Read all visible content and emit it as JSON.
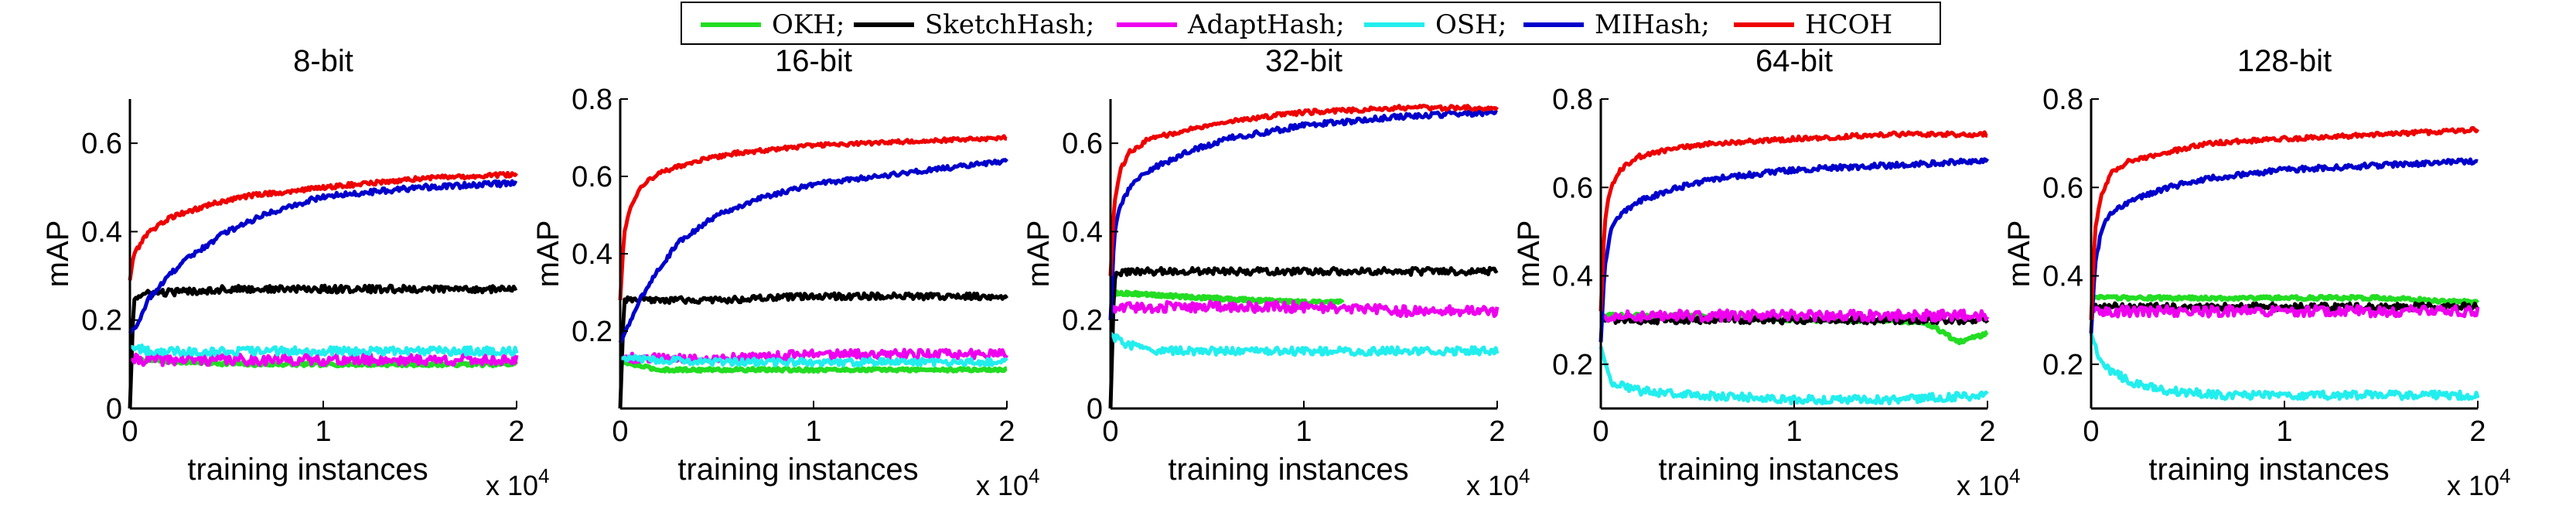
{
  "legend": {
    "items": [
      {
        "label": "OKH;",
        "color": "#22dd22"
      },
      {
        "label": "SketchHash;",
        "color": "#000000"
      },
      {
        "label": "AdaptHash;",
        "color": "#ee00ee"
      },
      {
        "label": "OSH;",
        "color": "#22eeee"
      },
      {
        "label": "MIHash;",
        "color": "#0000cc"
      },
      {
        "label": "HCOH",
        "color": "#ee0000"
      }
    ]
  },
  "chart_data": [
    {
      "type": "line",
      "title": "8-bit",
      "xlabel": "training instances",
      "ylabel": "mAP",
      "x_multiplier": "x 10^4",
      "xlim": [
        0,
        2
      ],
      "ylim": [
        0,
        0.7
      ],
      "xticks": [
        0,
        1,
        2
      ],
      "yticks": [
        0,
        0.2,
        0.4,
        0.6
      ],
      "series": [
        {
          "name": "OKH",
          "x": [
            0,
            0.6,
            2.0
          ],
          "values": [
            0.11,
            0.1,
            0.1
          ]
        },
        {
          "name": "SketchHash",
          "x": [
            0,
            0.02,
            0.1,
            0.5,
            1.0,
            1.5,
            2.0
          ],
          "values": [
            0.0,
            0.25,
            0.26,
            0.27,
            0.27,
            0.27,
            0.27
          ]
        },
        {
          "name": "AdaptHash",
          "x": [
            0,
            0.5,
            1.0,
            2.0
          ],
          "values": [
            0.11,
            0.11,
            0.11,
            0.11
          ]
        },
        {
          "name": "OSH",
          "x": [
            0,
            0.1,
            0.5,
            1.0,
            2.0
          ],
          "values": [
            0.14,
            0.13,
            0.13,
            0.13,
            0.13
          ]
        },
        {
          "name": "MIHash",
          "x": [
            0,
            0.05,
            0.1,
            0.2,
            0.3,
            0.5,
            0.7,
            1.0,
            1.5,
            2.0
          ],
          "values": [
            0.17,
            0.2,
            0.25,
            0.3,
            0.34,
            0.4,
            0.44,
            0.48,
            0.5,
            0.51
          ]
        },
        {
          "name": "HCOH",
          "x": [
            0,
            0.02,
            0.1,
            0.2,
            0.4,
            0.6,
            1.0,
            1.5,
            2.0
          ],
          "values": [
            0.29,
            0.35,
            0.4,
            0.43,
            0.46,
            0.48,
            0.5,
            0.52,
            0.53
          ]
        }
      ]
    },
    {
      "type": "line",
      "title": "16-bit",
      "xlabel": "training instances",
      "ylabel": "mAP",
      "x_multiplier": "x 10^4",
      "xlim": [
        0,
        2
      ],
      "ylim": [
        0,
        0.8
      ],
      "xticks": [
        0,
        1,
        2
      ],
      "yticks": [
        0.2,
        0.4,
        0.6,
        0.8
      ],
      "series": [
        {
          "name": "OKH",
          "x": [
            0,
            0.2,
            0.5,
            1.0,
            2.0
          ],
          "values": [
            0.12,
            0.1,
            0.1,
            0.1,
            0.1
          ]
        },
        {
          "name": "SketchHash",
          "x": [
            0,
            0.02,
            0.1,
            0.5,
            1.0,
            1.5,
            2.0
          ],
          "values": [
            0.0,
            0.28,
            0.28,
            0.28,
            0.29,
            0.29,
            0.29
          ]
        },
        {
          "name": "AdaptHash",
          "x": [
            0,
            0.5,
            1.0,
            1.5,
            2.0
          ],
          "values": [
            0.13,
            0.13,
            0.14,
            0.14,
            0.14
          ]
        },
        {
          "name": "OSH",
          "x": [
            0,
            0.5,
            1.0,
            2.0
          ],
          "values": [
            0.13,
            0.12,
            0.12,
            0.12
          ]
        },
        {
          "name": "MIHash",
          "x": [
            0,
            0.05,
            0.1,
            0.2,
            0.3,
            0.5,
            0.7,
            1.0,
            1.5,
            2.0
          ],
          "values": [
            0.17,
            0.22,
            0.28,
            0.36,
            0.43,
            0.5,
            0.54,
            0.58,
            0.61,
            0.64
          ]
        },
        {
          "name": "HCOH",
          "x": [
            0,
            0.02,
            0.05,
            0.1,
            0.2,
            0.4,
            0.6,
            1.0,
            1.5,
            2.0
          ],
          "values": [
            0.28,
            0.45,
            0.52,
            0.57,
            0.61,
            0.64,
            0.66,
            0.68,
            0.69,
            0.7
          ]
        }
      ]
    },
    {
      "type": "line",
      "title": "32-bit",
      "xlabel": "training instances",
      "ylabel": "mAP",
      "x_multiplier": "x 10^4",
      "xlim": [
        0,
        2
      ],
      "ylim": [
        0,
        0.7
      ],
      "xticks": [
        0,
        1,
        2
      ],
      "yticks": [
        0,
        0.2,
        0.4,
        0.6
      ],
      "series": [
        {
          "name": "OKH",
          "x": [
            0,
            0.1,
            0.5,
            1.0,
            1.2
          ],
          "values": [
            0.26,
            0.26,
            0.25,
            0.24,
            0.24
          ]
        },
        {
          "name": "SketchHash",
          "x": [
            0,
            0.02,
            0.1,
            0.5,
            1.0,
            1.5,
            2.0
          ],
          "values": [
            0.0,
            0.3,
            0.31,
            0.31,
            0.31,
            0.31,
            0.31
          ]
        },
        {
          "name": "AdaptHash",
          "x": [
            0,
            0.5,
            1.0,
            1.5,
            2.0
          ],
          "values": [
            0.23,
            0.23,
            0.23,
            0.22,
            0.22
          ]
        },
        {
          "name": "OSH",
          "x": [
            0,
            0.05,
            0.2,
            0.5,
            1.0,
            1.5,
            2.0
          ],
          "values": [
            0.17,
            0.15,
            0.13,
            0.13,
            0.13,
            0.13,
            0.13
          ]
        },
        {
          "name": "MIHash",
          "x": [
            0,
            0.02,
            0.05,
            0.1,
            0.2,
            0.4,
            0.6,
            1.0,
            1.5,
            2.0
          ],
          "values": [
            0.2,
            0.4,
            0.46,
            0.5,
            0.54,
            0.58,
            0.61,
            0.64,
            0.66,
            0.67
          ]
        },
        {
          "name": "HCOH",
          "x": [
            0,
            0.02,
            0.05,
            0.1,
            0.2,
            0.4,
            0.6,
            1.0,
            1.5,
            2.0
          ],
          "values": [
            0.3,
            0.47,
            0.54,
            0.58,
            0.61,
            0.63,
            0.65,
            0.67,
            0.68,
            0.68
          ]
        }
      ]
    },
    {
      "type": "line",
      "title": "64-bit",
      "xlabel": "training instances",
      "ylabel": "mAP",
      "x_multiplier": "x 10^4",
      "xlim": [
        0,
        2
      ],
      "ylim": [
        0.1,
        0.8
      ],
      "xticks": [
        0,
        1,
        2
      ],
      "yticks": [
        0.2,
        0.4,
        0.6,
        0.8
      ],
      "series": [
        {
          "name": "OKH",
          "x": [
            0,
            0.5,
            1.0,
            1.5,
            1.7,
            1.85,
            2.0
          ],
          "values": [
            0.31,
            0.31,
            0.3,
            0.3,
            0.29,
            0.25,
            0.27
          ]
        },
        {
          "name": "SketchHash",
          "x": [
            0,
            1.0,
            2.0
          ],
          "values": [
            0.3,
            0.3,
            0.3
          ]
        },
        {
          "name": "AdaptHash",
          "x": [
            0,
            0.5,
            1.0,
            1.5,
            2.0
          ],
          "values": [
            0.31,
            0.31,
            0.31,
            0.31,
            0.31
          ]
        },
        {
          "name": "OSH",
          "x": [
            0,
            0.05,
            0.2,
            0.5,
            1.0,
            1.5,
            2.0
          ],
          "values": [
            0.24,
            0.16,
            0.14,
            0.13,
            0.12,
            0.12,
            0.13
          ]
        },
        {
          "name": "MIHash",
          "x": [
            0,
            0.02,
            0.05,
            0.1,
            0.2,
            0.4,
            0.6,
            1.0,
            1.5,
            2.0
          ],
          "values": [
            0.25,
            0.42,
            0.5,
            0.54,
            0.57,
            0.6,
            0.62,
            0.64,
            0.65,
            0.66
          ]
        },
        {
          "name": "HCOH",
          "x": [
            0,
            0.02,
            0.05,
            0.1,
            0.2,
            0.4,
            0.6,
            1.0,
            1.5,
            2.0
          ],
          "values": [
            0.32,
            0.52,
            0.6,
            0.64,
            0.67,
            0.69,
            0.7,
            0.71,
            0.72,
            0.72
          ]
        }
      ]
    },
    {
      "type": "line",
      "title": "128-bit",
      "xlabel": "training instances",
      "ylabel": "mAP",
      "x_multiplier": "x 10^4",
      "xlim": [
        0,
        2
      ],
      "ylim": [
        0.1,
        0.8
      ],
      "xticks": [
        0,
        1,
        2
      ],
      "yticks": [
        0.2,
        0.4,
        0.6,
        0.8
      ],
      "series": [
        {
          "name": "OKH",
          "x": [
            0,
            0.5,
            1.0,
            1.5,
            2.0
          ],
          "values": [
            0.35,
            0.35,
            0.35,
            0.35,
            0.34
          ]
        },
        {
          "name": "SketchHash",
          "x": [
            0,
            1.0,
            2.0
          ],
          "values": [
            0.33,
            0.33,
            0.33
          ]
        },
        {
          "name": "AdaptHash",
          "x": [
            0,
            0.5,
            1.0,
            1.5,
            2.0
          ],
          "values": [
            0.32,
            0.32,
            0.32,
            0.32,
            0.32
          ]
        },
        {
          "name": "OSH",
          "x": [
            0,
            0.05,
            0.2,
            0.4,
            0.7,
            1.0,
            1.5,
            2.0
          ],
          "values": [
            0.27,
            0.2,
            0.16,
            0.14,
            0.13,
            0.13,
            0.13,
            0.13
          ]
        },
        {
          "name": "MIHash",
          "x": [
            0,
            0.02,
            0.05,
            0.1,
            0.2,
            0.4,
            0.6,
            1.0,
            1.5,
            2.0
          ],
          "values": [
            0.27,
            0.42,
            0.5,
            0.54,
            0.57,
            0.6,
            0.62,
            0.64,
            0.65,
            0.66
          ]
        },
        {
          "name": "HCOH",
          "x": [
            0,
            0.02,
            0.05,
            0.1,
            0.2,
            0.4,
            0.6,
            1.0,
            1.5,
            2.0
          ],
          "values": [
            0.3,
            0.5,
            0.58,
            0.63,
            0.66,
            0.68,
            0.7,
            0.71,
            0.72,
            0.73
          ]
        }
      ]
    }
  ]
}
